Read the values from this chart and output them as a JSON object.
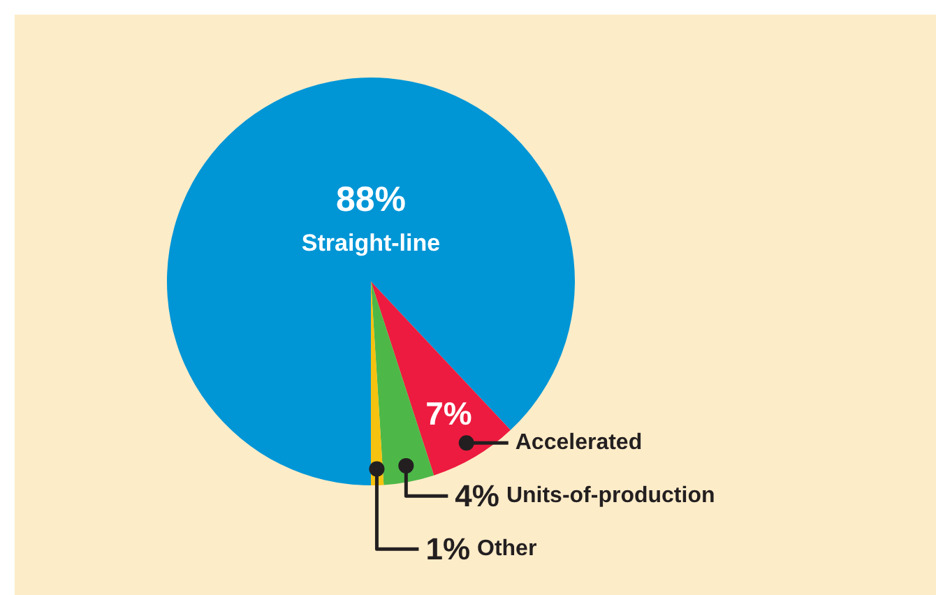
{
  "chart_data": {
    "type": "pie",
    "categories": [
      "Straight-line",
      "Accelerated",
      "Units-of-production",
      "Other"
    ],
    "values": [
      88,
      7,
      4,
      1
    ],
    "colors": [
      "#0096d6",
      "#ed1b3f",
      "#4db848",
      "#f5c20f"
    ],
    "value_labels": [
      "88%",
      "7%",
      "4%",
      "1%"
    ]
  }
}
